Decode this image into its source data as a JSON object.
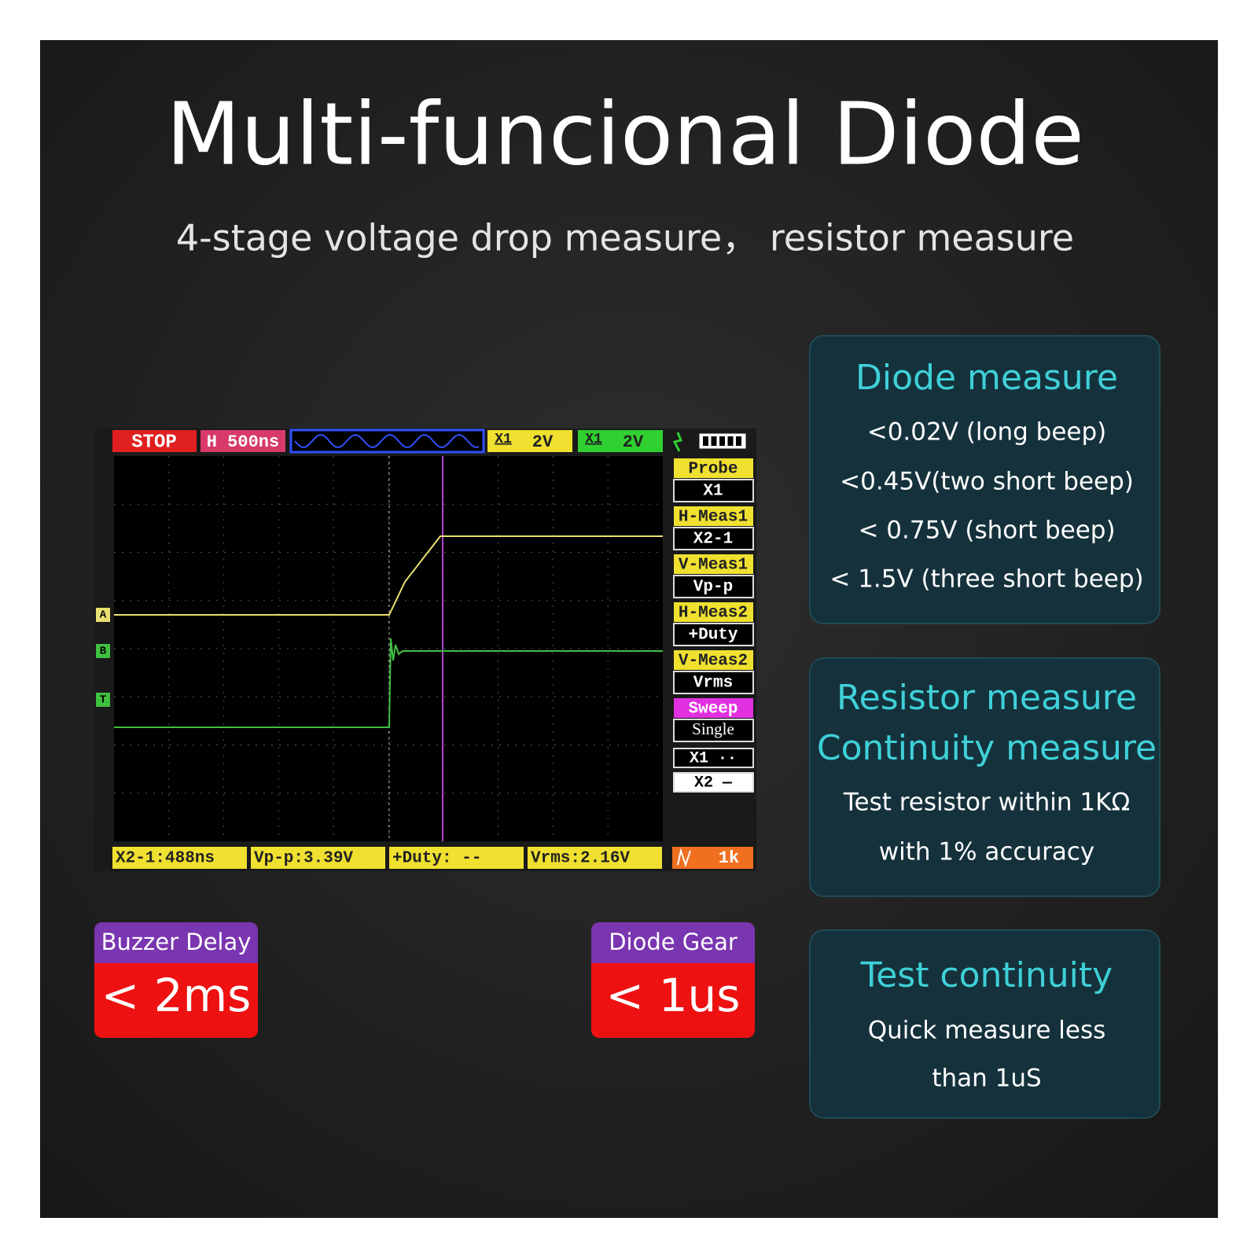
{
  "header": {
    "title": "Multi-funcional Diode",
    "subtitle": "4-stage voltage drop measure， resistor measure"
  },
  "scope": {
    "status": "STOP",
    "timebase": "H 500ns",
    "channels": [
      {
        "probe": "X1",
        "scale": "2V"
      },
      {
        "probe": "X1",
        "scale": "2V"
      }
    ],
    "markers": [
      "A",
      "B",
      "T"
    ],
    "menu": [
      {
        "label": "Probe",
        "value": "X1"
      },
      {
        "label": "H-Meas1",
        "value": "X2-1"
      },
      {
        "label": "V-Meas1",
        "value": "Vp-p"
      },
      {
        "label": "H-Meas2",
        "value": "+Duty"
      },
      {
        "label": "V-Meas2",
        "value": "Vrms"
      },
      {
        "label": "Sweep",
        "value": "Single"
      }
    ],
    "cursors": [
      "X1 ··",
      "X2 —"
    ],
    "measurements": [
      "X2-1:488ns",
      "Vp-p:3.39V",
      "+Duty: --",
      "Vrms:2.16V"
    ],
    "trigger_freq": "1k"
  },
  "badges": [
    {
      "label": "Buzzer Delay",
      "value": "< 2ms"
    },
    {
      "label": "Diode Gear",
      "value": "< 1us"
    }
  ],
  "cards": [
    {
      "titles": [
        "Diode measure"
      ],
      "lines": [
        "<0.02V (long beep)",
        "<0.45V(two short beep)",
        "< 0.75V (short beep)",
        "< 1.5V (three short beep)"
      ]
    },
    {
      "titles": [
        "Resistor measure",
        "Continuity measure"
      ],
      "lines": [
        "Test resistor within 1KΩ",
        "with 1% accuracy"
      ]
    },
    {
      "titles": [
        "Test continuity"
      ],
      "lines": [
        "Quick measure less",
        "than 1uS"
      ]
    }
  ]
}
